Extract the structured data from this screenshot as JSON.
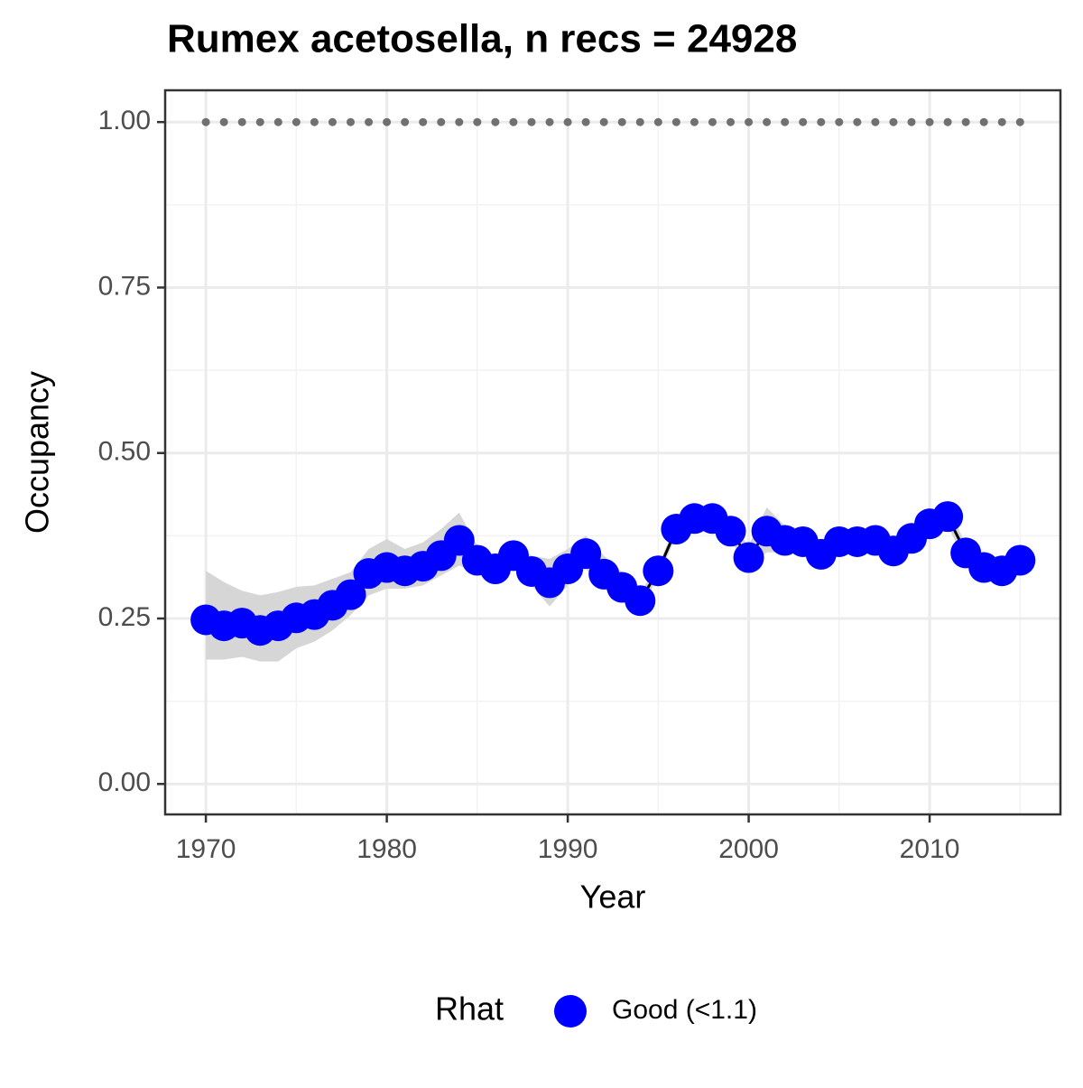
{
  "chart_data": {
    "type": "line",
    "title": "Rumex acetosella, n recs = 24928",
    "x_label": "Year",
    "y_label": "Occupancy",
    "x": [
      1970,
      1971,
      1972,
      1973,
      1974,
      1975,
      1976,
      1977,
      1978,
      1979,
      1980,
      1981,
      1982,
      1983,
      1984,
      1985,
      1986,
      1987,
      1988,
      1989,
      1990,
      1991,
      1992,
      1993,
      1994,
      1995,
      1996,
      1997,
      1998,
      1999,
      2000,
      2001,
      2002,
      2003,
      2004,
      2005,
      2006,
      2007,
      2008,
      2009,
      2010,
      2011,
      2012,
      2013,
      2014,
      2015
    ],
    "series": [
      {
        "name": "Good (<1.1)",
        "color": "#0000ff",
        "values": [
          0.248,
          0.239,
          0.243,
          0.232,
          0.239,
          0.251,
          0.256,
          0.27,
          0.286,
          0.318,
          0.327,
          0.322,
          0.329,
          0.345,
          0.368,
          0.338,
          0.325,
          0.345,
          0.321,
          0.304,
          0.325,
          0.348,
          0.317,
          0.297,
          0.277,
          0.322,
          0.385,
          0.401,
          0.401,
          0.382,
          0.342,
          0.382,
          0.368,
          0.366,
          0.347,
          0.366,
          0.366,
          0.368,
          0.352,
          0.371,
          0.393,
          0.404,
          0.349,
          0.327,
          0.322,
          0.338
        ],
        "upper": [
          0.322,
          0.305,
          0.292,
          0.285,
          0.29,
          0.298,
          0.3,
          0.31,
          0.32,
          0.355,
          0.37,
          0.355,
          0.365,
          0.385,
          0.41,
          0.36,
          0.345,
          0.365,
          0.345,
          0.34,
          0.355,
          0.375,
          0.345,
          0.32,
          0.29,
          0.33,
          0.395,
          0.415,
          0.415,
          0.395,
          0.36,
          0.418,
          0.39,
          0.385,
          0.365,
          0.382,
          0.382,
          0.385,
          0.37,
          0.39,
          0.41,
          0.42,
          0.362,
          0.34,
          0.335,
          0.35
        ],
        "lower": [
          0.188,
          0.188,
          0.192,
          0.185,
          0.185,
          0.205,
          0.215,
          0.232,
          0.255,
          0.285,
          0.295,
          0.295,
          0.3,
          0.315,
          0.33,
          0.318,
          0.305,
          0.325,
          0.3,
          0.268,
          0.3,
          0.325,
          0.295,
          0.278,
          0.265,
          0.312,
          0.375,
          0.388,
          0.388,
          0.368,
          0.325,
          0.35,
          0.35,
          0.35,
          0.33,
          0.352,
          0.352,
          0.352,
          0.336,
          0.355,
          0.378,
          0.39,
          0.335,
          0.315,
          0.31,
          0.325
        ]
      }
    ],
    "reference": {
      "color": "#707070",
      "values": [
        1,
        1,
        1,
        1,
        1,
        1,
        1,
        1,
        1,
        1,
        1,
        1,
        1,
        1,
        1,
        1,
        1,
        1,
        1,
        1,
        1,
        1,
        1,
        1,
        1,
        1,
        1,
        1,
        1,
        1,
        1,
        1,
        1,
        1,
        1,
        1,
        1,
        1,
        1,
        1,
        1,
        1,
        1,
        1,
        1,
        1
      ]
    },
    "band_color": "#d6d6d6",
    "line_color": "#000000",
    "xlim": [
      1967.75,
      2017.23
    ],
    "xticks": [
      1970,
      1980,
      1990,
      2000,
      2010
    ],
    "xticks_minor": [
      1975,
      1985,
      1995,
      2005,
      2015
    ],
    "ylim": [
      -0.046,
      1.048
    ],
    "yticks": [
      {
        "value": 0,
        "label": "0.00"
      },
      {
        "value": 0.25,
        "label": "0.25"
      },
      {
        "value": 0.5,
        "label": "0.50"
      },
      {
        "value": 0.75,
        "label": "0.75"
      },
      {
        "value": 1,
        "label": "1.00"
      }
    ],
    "yticks_minor": [
      0.125,
      0.375,
      0.625,
      0.875
    ],
    "grid": true,
    "legend_title": "Rhat",
    "legend_position": "bottom"
  }
}
